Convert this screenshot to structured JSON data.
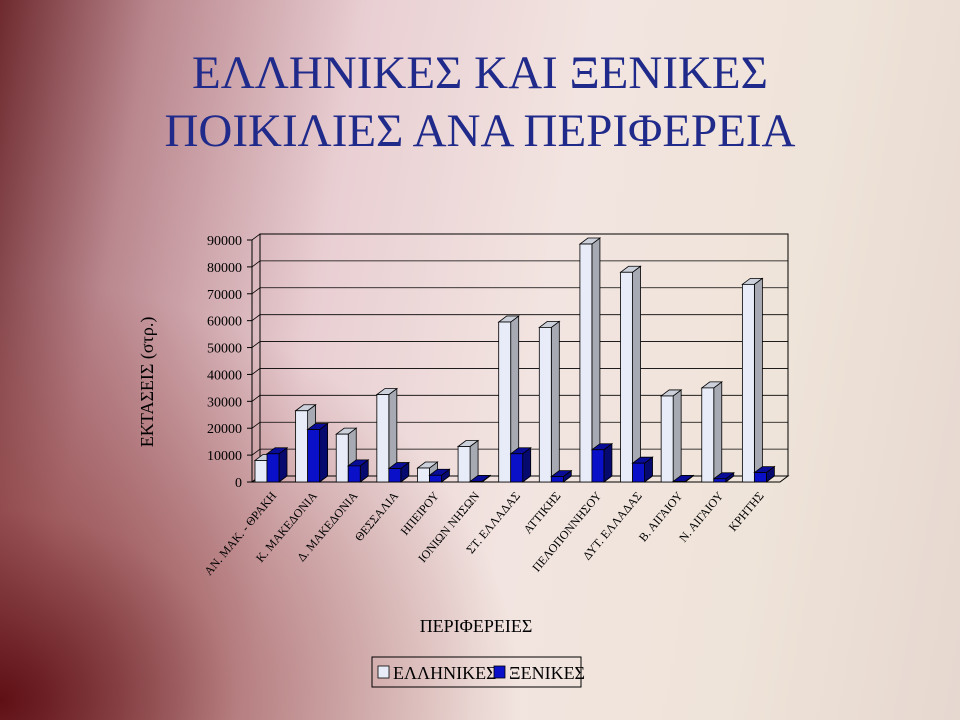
{
  "slide": {
    "title_line1": "ΕΛΛΗΝΙΚΕΣ ΚΑΙ ΞΕΝΙΚΕΣ",
    "title_line2": "ΠΟΙΚΙΛΙΕΣ ΑΝΑ ΠΕΡΙΦΕΡΕΙΑ"
  },
  "chart_data": {
    "type": "bar",
    "title": "",
    "xlabel": "ΠΕΡΙΦΕΡΕΙΕΣ",
    "ylabel": "ΕΚΤΑΣΕΙΣ  (στρ.)",
    "ylim": [
      0,
      90000
    ],
    "yticks": [
      "0",
      "10000",
      "20000",
      "30000",
      "40000",
      "50000",
      "60000",
      "70000",
      "80000",
      "90000"
    ],
    "grid": true,
    "legend_position": "bottom",
    "categories": [
      "ΑΝ. ΜΑΚ. - ΘΡΑΚΗ",
      "Κ. ΜΑΚΕΔΟΝΙΑ",
      "Δ. ΜΑΚΕΔΟΝΙΑ",
      "ΘΕΣΣΑΛΙΑ",
      "ΗΠΕΙΡΟΥ",
      "ΙΟΝΙΩΝ ΝΗΣΩΝ",
      "ΣΤ. ΕΛΛΑΔΑΣ",
      "ΑΤΤΙΚΗΣ",
      "ΠΕΛΟΠΟΝΝΗΣΟΥ",
      "ΔΥΤ. ΕΛΛΑΔΑΣ",
      "Β. ΑΙΓΑΙΟΥ",
      "Ν. ΑΙΓΑΙΟΥ",
      "ΚΡΗΤΗΣ"
    ],
    "series": [
      {
        "name": "ΕΛΛΗΝΙΚΕΣ",
        "color": "#e8ecf8",
        "values": [
          8000,
          26500,
          17800,
          32500,
          5200,
          13200,
          59500,
          57500,
          88500,
          78000,
          32000,
          35000,
          73500
        ]
      },
      {
        "name": "ΞΕΝΙΚΕΣ",
        "color": "#0a10c8",
        "values": [
          10500,
          19500,
          6000,
          5000,
          2500,
          200,
          10500,
          2000,
          12000,
          7000,
          200,
          1200,
          3500
        ]
      }
    ]
  }
}
